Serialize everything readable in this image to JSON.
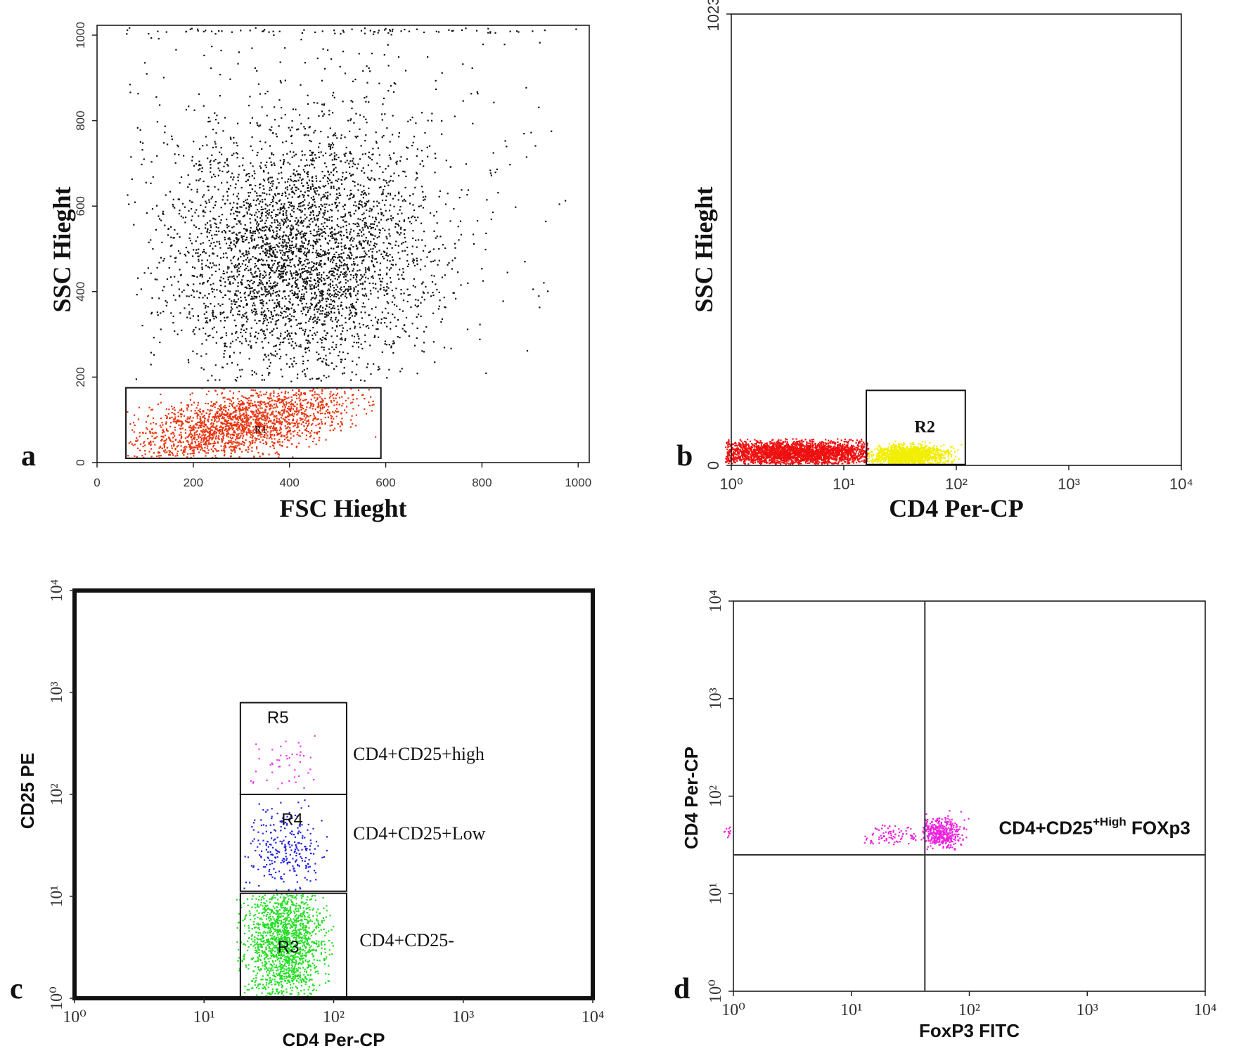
{
  "chart_data": [
    {
      "id": "a",
      "type": "scatter",
      "panel_letter": "a",
      "xlabel": "FSC Hieght",
      "ylabel": "SSC Hieght",
      "xscale": "linear",
      "yscale": "linear",
      "xlim": [
        0,
        1023
      ],
      "ylim": [
        0,
        1023
      ],
      "xticks": [
        {
          "value": 0,
          "label": "0"
        },
        {
          "value": 200,
          "label": "200"
        },
        {
          "value": 400,
          "label": "400"
        },
        {
          "value": 600,
          "label": "600"
        },
        {
          "value": 800,
          "label": "800"
        },
        {
          "value": 1000,
          "label": "1000"
        }
      ],
      "yticks": [
        {
          "value": 0,
          "label": "0"
        },
        {
          "value": 200,
          "label": "200"
        },
        {
          "value": 400,
          "label": "400"
        },
        {
          "value": 600,
          "label": "600"
        },
        {
          "value": 800,
          "label": "800"
        },
        {
          "value": 1000,
          "label": "1000"
        }
      ],
      "series": [
        {
          "color": "#111111",
          "clusters": [
            {
              "n": 3200,
              "cx": 420,
              "cy": 480,
              "sx": 130,
              "sy": 140,
              "xmin": 60,
              "xmax": 1000,
              "ymin": 190,
              "ymax": 1000
            },
            {
              "n": 700,
              "cx": 450,
              "cy": 600,
              "sx": 230,
              "sy": 230,
              "xmin": 60,
              "xmax": 1010,
              "ymin": 190,
              "ymax": 1000
            },
            {
              "n": 80,
              "cx": 500,
              "cy": 1010,
              "sx": 260,
              "sy": 4,
              "xmin": 60,
              "xmax": 1010,
              "ymin": 1000,
              "ymax": 1018
            }
          ]
        },
        {
          "color": "#e8340e",
          "clusters": [
            {
              "n": 1900,
              "cx": 300,
              "cy": 90,
              "sx": 120,
              "sy": 40,
              "xmin": 62,
              "xmax": 580,
              "ymin": 10,
              "ymax": 175,
              "trend": 0.22
            }
          ]
        }
      ],
      "gates": [
        {
          "name": "R1",
          "x0": 60,
          "x1": 590,
          "y0": 10,
          "y1": 175,
          "label_x": 340,
          "label_y": 70
        }
      ]
    },
    {
      "id": "b",
      "type": "scatter",
      "panel_letter": "b",
      "xlabel": "CD4 Per-CP",
      "ylabel": "SSC Hieght",
      "xscale": "log",
      "yscale": "linear",
      "xlim": [
        1,
        10000
      ],
      "ylim": [
        0,
        1023
      ],
      "xticks": [
        {
          "value": 1,
          "label": "10⁰"
        },
        {
          "value": 10,
          "label": "10¹"
        },
        {
          "value": 100,
          "label": "10²"
        },
        {
          "value": 1000,
          "label": "10³"
        },
        {
          "value": 10000,
          "label": "10⁴"
        }
      ],
      "yticks": [
        {
          "value": 0,
          "label": "0"
        },
        {
          "value": 1023,
          "label": "1023"
        }
      ],
      "series": [
        {
          "color": "#ee1111",
          "clusters": [
            {
              "n": 2600,
              "cx": 0.55,
              "cy": 28,
              "sx": 0.45,
              "sy": 14,
              "xmin": -0.05,
              "xmax": 1.22,
              "ymin": 3,
              "ymax": 60
            }
          ]
        },
        {
          "color": "#f2ee00",
          "clusters": [
            {
              "n": 1400,
              "cx": 1.58,
              "cy": 22,
              "sx": 0.16,
              "sy": 12,
              "xmin": 1.22,
              "xmax": 2.05,
              "ymin": 3,
              "ymax": 55
            }
          ]
        }
      ],
      "gates": [
        {
          "name": "R2",
          "x0": 1.2,
          "x1": 2.08,
          "y0": 2,
          "y1": 170,
          "label_x": 1.72,
          "label_y": 75
        }
      ]
    },
    {
      "id": "c",
      "type": "scatter",
      "panel_letter": "c",
      "xlabel": "CD4 Per-CP",
      "ylabel": "CD25 PE",
      "xscale": "log",
      "yscale": "log",
      "xlim": [
        1,
        10000
      ],
      "ylim": [
        1,
        10000
      ],
      "xticks": [
        {
          "value": 1,
          "label": "10⁰"
        },
        {
          "value": 10,
          "label": "10¹"
        },
        {
          "value": 100,
          "label": "10²"
        },
        {
          "value": 1000,
          "label": "10³"
        },
        {
          "value": 10000,
          "label": "10⁴"
        }
      ],
      "yticks": [
        {
          "value": 1,
          "label": "10⁰"
        },
        {
          "value": 10,
          "label": "10¹"
        },
        {
          "value": 100,
          "label": "10²"
        },
        {
          "value": 1000,
          "label": "10³"
        },
        {
          "value": 10000,
          "label": "10⁴"
        }
      ],
      "series": [
        {
          "color": "#22dd22",
          "clusters": [
            {
              "n": 1500,
              "cx": 1.62,
              "cy": 0.55,
              "sx": 0.16,
              "sy": 0.32,
              "xmin": 1.25,
              "xmax": 2.0,
              "ymin": 0.0,
              "ymax": 1.02
            }
          ]
        },
        {
          "color": "#2222dd",
          "clusters": [
            {
              "n": 260,
              "cx": 1.62,
              "cy": 1.45,
              "sx": 0.14,
              "sy": 0.22,
              "xmin": 1.3,
              "xmax": 1.95,
              "ymin": 1.04,
              "ymax": 2.0
            }
          ]
        },
        {
          "color": "#ee33ee",
          "clusters": [
            {
              "n": 45,
              "cx": 1.6,
              "cy": 2.25,
              "sx": 0.15,
              "sy": 0.18,
              "xmin": 1.35,
              "xmax": 1.9,
              "ymin": 2.05,
              "ymax": 2.6
            }
          ]
        }
      ],
      "gates": [
        {
          "name": "R5",
          "x0": 1.28,
          "x1": 2.1,
          "y0": 2.0,
          "y1": 2.9,
          "label_x": 1.57,
          "label_y": 2.7
        },
        {
          "name": "R4",
          "x0": 1.28,
          "x1": 2.1,
          "y0": 1.05,
          "y1": 2.0,
          "label_x": 1.68,
          "label_y": 1.7
        },
        {
          "name": "R3",
          "x0": 1.28,
          "x1": 2.1,
          "y0": 0.0,
          "y1": 1.03,
          "label_x": 1.65,
          "label_y": 0.45
        }
      ],
      "annotations": [
        {
          "text": "CD4+CD25+high",
          "x": 2.15,
          "y": 2.38
        },
        {
          "text": "CD4+CD25+Low",
          "x": 2.15,
          "y": 1.6
        },
        {
          "text": "CD4+CD25-",
          "x": 2.2,
          "y": 0.55
        }
      ]
    },
    {
      "id": "d",
      "type": "scatter",
      "panel_letter": "d",
      "xlabel": "FoxP3 FITC",
      "ylabel": "CD4 Per-CP",
      "xscale": "log",
      "yscale": "log",
      "xlim": [
        1,
        10000
      ],
      "ylim": [
        1,
        10000
      ],
      "xticks": [
        {
          "value": 1,
          "label": "10⁰"
        },
        {
          "value": 10,
          "label": "10¹"
        },
        {
          "value": 100,
          "label": "10²"
        },
        {
          "value": 1000,
          "label": "10³"
        },
        {
          "value": 10000,
          "label": "10⁴"
        }
      ],
      "yticks": [
        {
          "value": 1,
          "label": "10⁰"
        },
        {
          "value": 10,
          "label": "10¹"
        },
        {
          "value": 100,
          "label": "10²"
        },
        {
          "value": 1000,
          "label": "10³"
        },
        {
          "value": 10000,
          "label": "10⁴"
        }
      ],
      "quadrant": {
        "x": 42,
        "y": 25
      },
      "series": [
        {
          "color": "#ee22dd",
          "clusters": [
            {
              "n": 420,
              "cx": 1.76,
              "cy": 1.62,
              "sx": 0.08,
              "sy": 0.08,
              "xmin": 1.6,
              "xmax": 2.2,
              "ymin": 1.45,
              "ymax": 1.88
            },
            {
              "n": 90,
              "cx": 1.35,
              "cy": 1.6,
              "sx": 0.15,
              "sy": 0.06,
              "xmin": 1.05,
              "xmax": 1.62,
              "ymin": 1.5,
              "ymax": 1.75
            },
            {
              "n": 12,
              "cx": -0.05,
              "cy": 1.66,
              "sx": 0.02,
              "sy": 0.04,
              "xmin": -0.08,
              "xmax": 0.0,
              "ymin": 1.55,
              "ymax": 1.75
            }
          ]
        }
      ],
      "annotations": [
        {
          "text": "CD4+CD25",
          "sup": "+High",
          "tail": " FOXp3",
          "x": 2.25,
          "y": 1.66
        }
      ]
    }
  ]
}
